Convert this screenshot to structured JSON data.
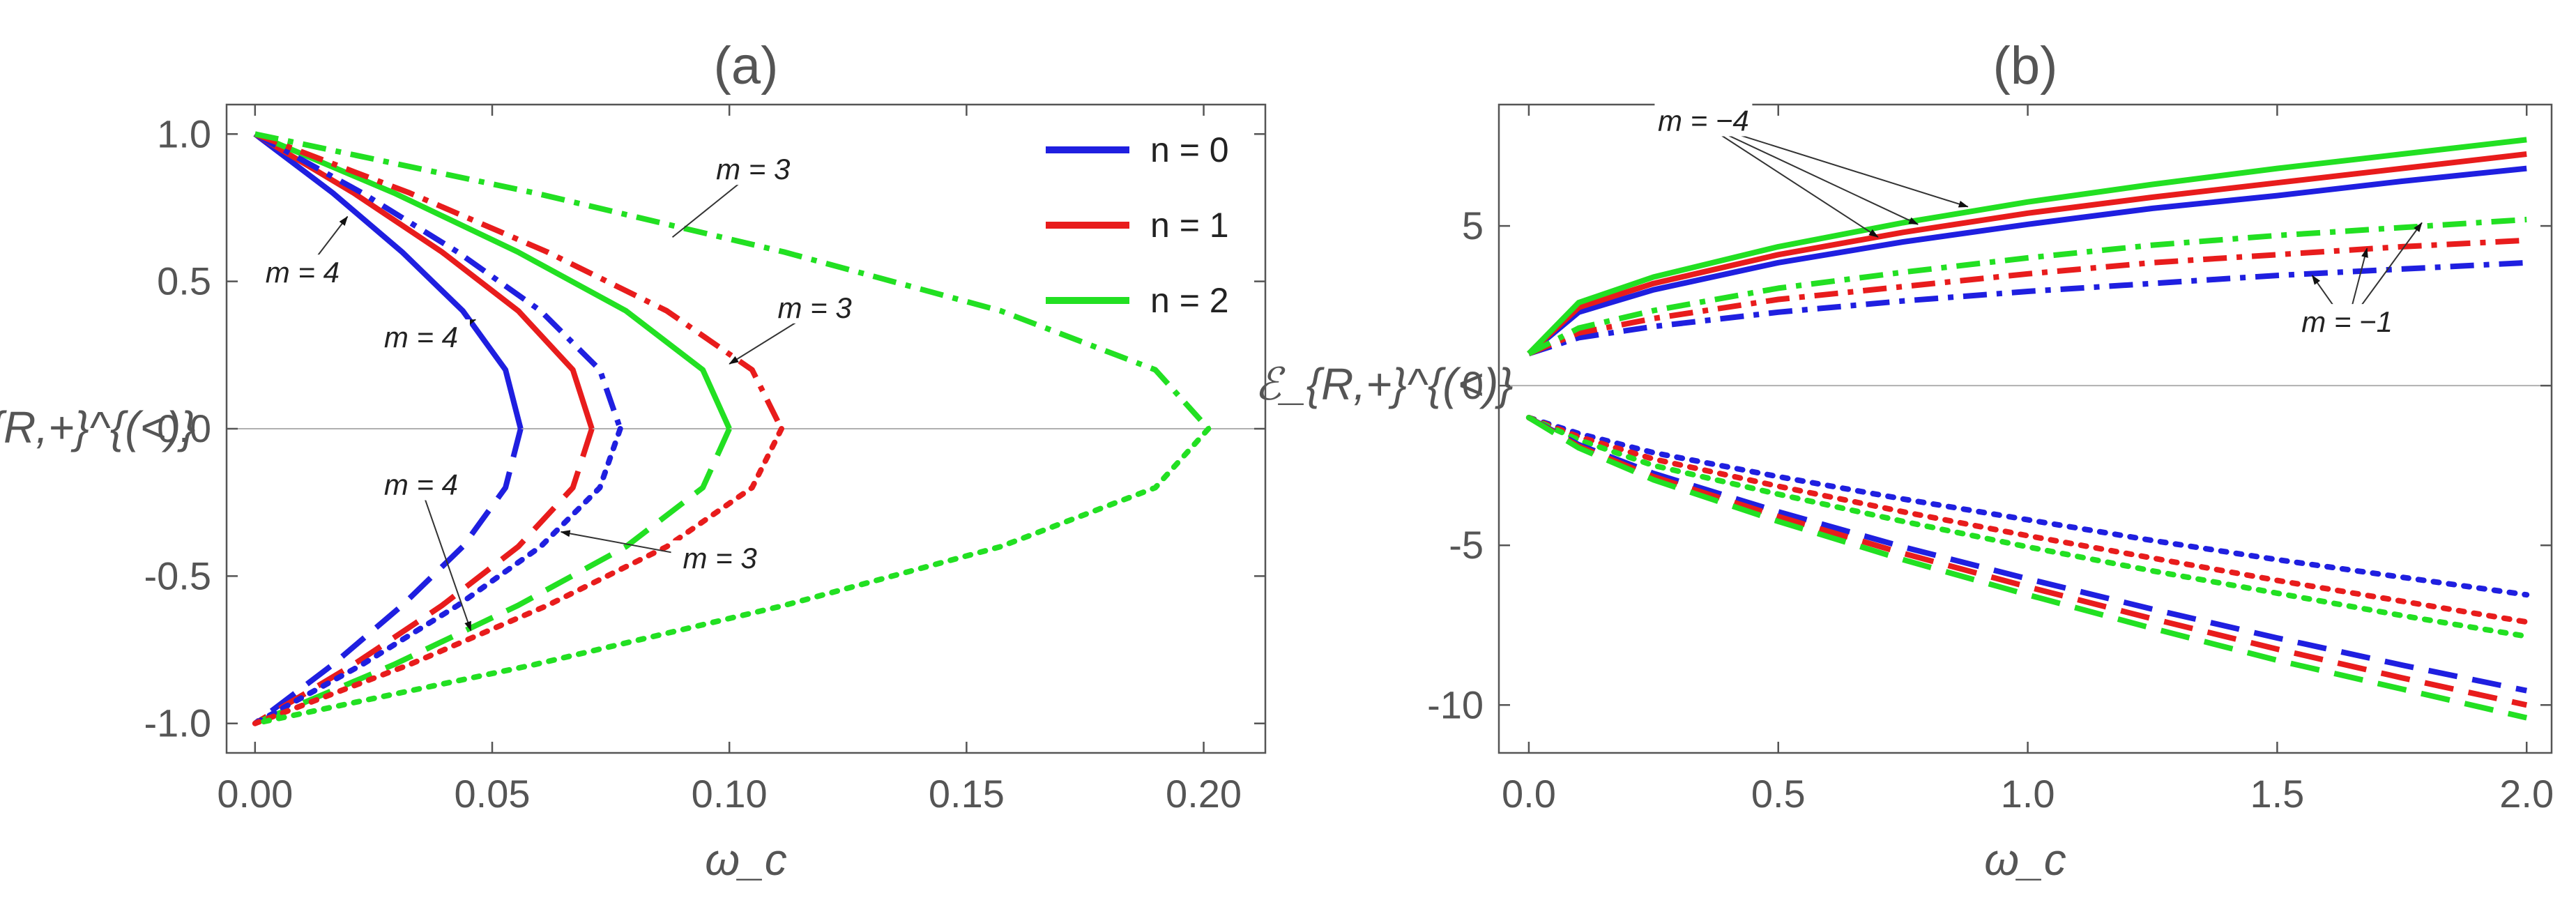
{
  "chart_data": [
    {
      "type": "line",
      "panel": "(a)",
      "title": "(a)",
      "xlabel": "ω_c",
      "ylabel": "ℰ_{R,+}^{(<)}",
      "xlim": [
        -0.006,
        0.213
      ],
      "ylim": [
        -1.1,
        1.1
      ],
      "xticks": [
        "0.00",
        "0.05",
        "0.10",
        "0.15",
        "0.20"
      ],
      "xtick_values": [
        0,
        0.05,
        0.1,
        0.15,
        0.2
      ],
      "yticks": [
        "-1.0",
        "-0.5",
        "0.0",
        "0.5",
        "1.0"
      ],
      "ytick_values": [
        -1,
        -0.5,
        0,
        0.5,
        1
      ],
      "zero_line": true,
      "legend": {
        "placement": "top-right",
        "entries": [
          {
            "label": "n = 0",
            "color": "#1f1fe0"
          },
          {
            "label": "n = 1",
            "color": "#e81c1c"
          },
          {
            "label": "n = 2",
            "color": "#22e022"
          }
        ]
      },
      "series": [
        {
          "group": "n = 0, m = 4",
          "branch": "upper",
          "dash": "solid",
          "color": "#1f1fe0",
          "turning_point": 0.056,
          "x": [
            0,
            0.0164,
            0.031,
            0.0438,
            0.0528,
            0.056
          ],
          "y": [
            1,
            0.8,
            0.6,
            0.4,
            0.2,
            0
          ]
        },
        {
          "group": "n = 0, m = 4",
          "branch": "lower",
          "dash": "dashed",
          "color": "#1f1fe0",
          "turning_point": 0.056,
          "x": [
            0.056,
            0.0528,
            0.0438,
            0.031,
            0.0164,
            0
          ],
          "y": [
            0,
            -0.2,
            -0.4,
            -0.6,
            -0.8,
            -1
          ]
        },
        {
          "group": "n = 1, m = 4",
          "branch": "upper",
          "dash": "solid",
          "color": "#e81c1c",
          "turning_point": 0.071,
          "x": [
            0,
            0.0208,
            0.0394,
            0.0555,
            0.067,
            0.071
          ],
          "y": [
            1,
            0.8,
            0.6,
            0.4,
            0.2,
            0
          ]
        },
        {
          "group": "n = 1, m = 4",
          "branch": "lower",
          "dash": "dashed",
          "color": "#e81c1c",
          "turning_point": 0.071,
          "x": [
            0.071,
            0.067,
            0.0555,
            0.0394,
            0.0208,
            0
          ],
          "y": [
            0,
            -0.2,
            -0.4,
            -0.6,
            -0.8,
            -1
          ]
        },
        {
          "group": "n = 2, m = 4",
          "branch": "upper",
          "dash": "solid",
          "color": "#22e022",
          "turning_point": 0.1,
          "x": [
            0,
            0.0293,
            0.0554,
            0.0782,
            0.0944,
            0.1
          ],
          "y": [
            1,
            0.8,
            0.6,
            0.4,
            0.2,
            0
          ]
        },
        {
          "group": "n = 2, m = 4",
          "branch": "lower",
          "dash": "dashed",
          "color": "#22e022",
          "turning_point": 0.1,
          "x": [
            0.1,
            0.0944,
            0.0782,
            0.0554,
            0.0293,
            0
          ],
          "y": [
            0,
            -0.2,
            -0.4,
            -0.6,
            -0.8,
            -1
          ]
        },
        {
          "group": "n = 0, m = 3",
          "branch": "upper",
          "dash": "dashdot",
          "color": "#1f1fe0",
          "turning_point": 0.077,
          "x": [
            0,
            0.0226,
            0.0427,
            0.0602,
            0.0727,
            0.077
          ],
          "y": [
            1,
            0.8,
            0.6,
            0.4,
            0.2,
            0
          ]
        },
        {
          "group": "n = 0, m = 3",
          "branch": "lower",
          "dash": "dotted",
          "color": "#1f1fe0",
          "turning_point": 0.077,
          "x": [
            0.077,
            0.0727,
            0.0602,
            0.0427,
            0.0226,
            0
          ],
          "y": [
            0,
            -0.2,
            -0.4,
            -0.6,
            -0.8,
            -1
          ]
        },
        {
          "group": "n = 1, m = 3",
          "branch": "upper",
          "dash": "dashdot",
          "color": "#e81c1c",
          "turning_point": 0.111,
          "x": [
            0,
            0.0326,
            0.0616,
            0.0868,
            0.1048,
            0.111
          ],
          "y": [
            1,
            0.8,
            0.6,
            0.4,
            0.2,
            0
          ]
        },
        {
          "group": "n = 1, m = 3",
          "branch": "lower",
          "dash": "dotted",
          "color": "#e81c1c",
          "turning_point": 0.111,
          "x": [
            0.111,
            0.1048,
            0.0868,
            0.0616,
            0.0326,
            0
          ],
          "y": [
            0,
            -0.2,
            -0.4,
            -0.6,
            -0.8,
            -1
          ]
        },
        {
          "group": "n = 2, m = 3",
          "branch": "upper",
          "dash": "dashdot",
          "color": "#22e022",
          "turning_point": 0.201,
          "x": [
            0,
            0.059,
            0.1115,
            0.1572,
            0.1898,
            0.201
          ],
          "y": [
            1,
            0.8,
            0.6,
            0.4,
            0.2,
            0
          ]
        },
        {
          "group": "n = 2, m = 3",
          "branch": "lower",
          "dash": "dotted",
          "color": "#22e022",
          "turning_point": 0.201,
          "x": [
            0.201,
            0.1898,
            0.1572,
            0.1115,
            0.059,
            0
          ],
          "y": [
            0,
            -0.2,
            -0.4,
            -0.6,
            -0.8,
            -1
          ]
        }
      ],
      "annotations": [
        {
          "text": "m = 4",
          "label_at": [
            0.01,
            0.52
          ],
          "arrow_to": [
            0.0195,
            0.72
          ],
          "arrowhead": true
        },
        {
          "text": "m = 4",
          "label_at": [
            0.035,
            0.3
          ],
          "arrow_to": [
            0.0465,
            0.37
          ],
          "arrowhead": true
        },
        {
          "text": "m = 4",
          "label_at": [
            0.035,
            -0.2
          ],
          "arrow_to": [
            0.0455,
            -0.685
          ],
          "arrowhead": true
        },
        {
          "text": "m = 3",
          "label_at": [
            0.105,
            0.87
          ],
          "arrow_to": [
            0.088,
            0.65
          ],
          "arrowhead": false
        },
        {
          "text": "m = 3",
          "label_at": [
            0.118,
            0.4
          ],
          "arrow_to": [
            0.1,
            0.22
          ],
          "arrowhead": true
        },
        {
          "text": "m = 3",
          "label_at": [
            0.098,
            -0.45
          ],
          "arrow_to": [
            0.0645,
            -0.35
          ],
          "arrowhead": true
        }
      ]
    },
    {
      "type": "line",
      "panel": "(b)",
      "title": "(b)",
      "xlabel": "ω_c",
      "ylabel": "ℰ_{R,+}^{(<)}",
      "xlim": [
        -0.06,
        2.05
      ],
      "ylim": [
        -11.5,
        8.8
      ],
      "xticks": [
        "0.0",
        "0.5",
        "1.0",
        "1.5",
        "2.0"
      ],
      "xtick_values": [
        0,
        0.5,
        1,
        1.5,
        2
      ],
      "yticks": [
        "-10",
        "-5",
        "0",
        "5"
      ],
      "ytick_values": [
        -10,
        -5,
        0,
        5
      ],
      "zero_line": true,
      "series": [
        {
          "group": "n = 0, m = -4",
          "dash": "solid",
          "color": "#1f1fe0",
          "x": [
            0,
            0.1,
            0.25,
            0.5,
            0.75,
            1,
            1.25,
            1.5,
            1.75,
            2
          ],
          "y": [
            1,
            2.3,
            3,
            3.85,
            4.5,
            5.05,
            5.55,
            5.95,
            6.4,
            6.8
          ]
        },
        {
          "group": "n = 1, m = -4",
          "dash": "solid",
          "color": "#e81c1c",
          "x": [
            0,
            0.1,
            0.25,
            0.5,
            0.75,
            1,
            1.25,
            1.5,
            1.75,
            2
          ],
          "y": [
            1,
            2.45,
            3.2,
            4.1,
            4.8,
            5.4,
            5.9,
            6.35,
            6.8,
            7.25
          ]
        },
        {
          "group": "n = 2, m = -4",
          "dash": "solid",
          "color": "#22e022",
          "x": [
            0,
            0.1,
            0.25,
            0.5,
            0.75,
            1,
            1.25,
            1.5,
            1.75,
            2
          ],
          "y": [
            1,
            2.6,
            3.4,
            4.35,
            5.1,
            5.75,
            6.3,
            6.8,
            7.25,
            7.7
          ]
        },
        {
          "group": "n = 0, m = -1",
          "dash": "dashdot",
          "color": "#1f1fe0",
          "x": [
            0,
            0.1,
            0.25,
            0.5,
            0.75,
            1,
            1.25,
            1.5,
            1.75,
            2
          ],
          "y": [
            1,
            1.5,
            1.85,
            2.3,
            2.65,
            2.95,
            3.2,
            3.45,
            3.65,
            3.85
          ]
        },
        {
          "group": "n = 1, m = -1",
          "dash": "dashdot",
          "color": "#e81c1c",
          "x": [
            0,
            0.1,
            0.25,
            0.5,
            0.75,
            1,
            1.25,
            1.5,
            1.75,
            2
          ],
          "y": [
            1,
            1.65,
            2.1,
            2.7,
            3.1,
            3.5,
            3.85,
            4.1,
            4.35,
            4.55
          ]
        },
        {
          "group": "n = 2, m = -1",
          "dash": "dashdot",
          "color": "#22e022",
          "x": [
            0,
            0.1,
            0.25,
            0.5,
            0.75,
            1,
            1.25,
            1.5,
            1.75,
            2
          ],
          "y": [
            1,
            1.8,
            2.35,
            3.05,
            3.55,
            4,
            4.4,
            4.7,
            4.95,
            5.2
          ]
        },
        {
          "group": "n = 0",
          "dash": "dotted",
          "color": "#1f1fe0",
          "x": [
            0,
            0.1,
            0.25,
            0.5,
            0.75,
            1,
            1.25,
            1.5,
            1.75,
            2
          ],
          "y": [
            -1,
            -1.5,
            -2.1,
            -2.85,
            -3.55,
            -4.2,
            -4.85,
            -5.45,
            -6,
            -6.55
          ]
        },
        {
          "group": "n = 1",
          "dash": "dotted",
          "color": "#e81c1c",
          "x": [
            0,
            0.1,
            0.25,
            0.5,
            0.75,
            1,
            1.25,
            1.5,
            1.75,
            2
          ],
          "y": [
            -1,
            -1.6,
            -2.3,
            -3.15,
            -3.95,
            -4.7,
            -5.4,
            -6.1,
            -6.75,
            -7.4
          ]
        },
        {
          "group": "n = 2",
          "dash": "dotted",
          "color": "#22e022",
          "x": [
            0,
            0.1,
            0.25,
            0.5,
            0.75,
            1,
            1.25,
            1.5,
            1.75,
            2
          ],
          "y": [
            -1,
            -1.7,
            -2.5,
            -3.4,
            -4.25,
            -5.05,
            -5.8,
            -6.5,
            -7.2,
            -7.85
          ]
        },
        {
          "group": "n = 0",
          "dash": "dashed",
          "color": "#1f1fe0",
          "x": [
            0,
            0.1,
            0.25,
            0.5,
            0.75,
            1,
            1.25,
            1.5,
            1.75,
            2
          ],
          "y": [
            -1,
            -1.85,
            -2.75,
            -3.95,
            -5.05,
            -6.05,
            -7,
            -7.9,
            -8.75,
            -9.55
          ]
        },
        {
          "group": "n = 1",
          "dash": "dashed",
          "color": "#e81c1c",
          "x": [
            0,
            0.1,
            0.25,
            0.5,
            0.75,
            1,
            1.25,
            1.5,
            1.75,
            2
          ],
          "y": [
            -1,
            -1.9,
            -2.85,
            -4.1,
            -5.25,
            -6.3,
            -7.3,
            -8.25,
            -9.15,
            -10
          ]
        },
        {
          "group": "n = 2",
          "dash": "dashed",
          "color": "#22e022",
          "x": [
            0,
            0.1,
            0.25,
            0.5,
            0.75,
            1,
            1.25,
            1.5,
            1.75,
            2
          ],
          "y": [
            -1,
            -1.95,
            -2.95,
            -4.25,
            -5.45,
            -6.55,
            -7.6,
            -8.6,
            -9.5,
            -10.4
          ]
        }
      ],
      "annotations": [
        {
          "text": "m = −4",
          "label_at": [
            0.35,
            8.2
          ],
          "arrows_to": [
            [
              0.7,
              4.65
            ],
            [
              0.78,
              5.05
            ],
            [
              0.88,
              5.6
            ]
          ],
          "arrowhead": true
        },
        {
          "text": "m = −1",
          "label_at": [
            1.64,
            1.9
          ],
          "arrows_to": [
            [
              1.57,
              3.45
            ],
            [
              1.68,
              4.3
            ],
            [
              1.79,
              5.1
            ]
          ],
          "arrowhead": true
        }
      ]
    }
  ]
}
